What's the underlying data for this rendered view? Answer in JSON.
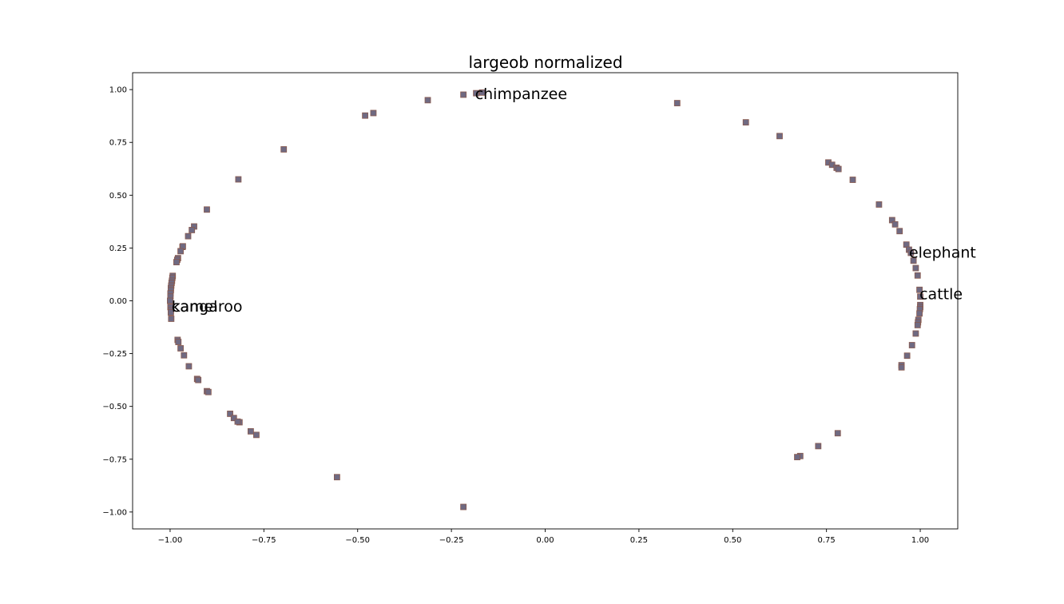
{
  "chart_data": {
    "type": "scatter",
    "title": "largeob normalized",
    "xlabel": "",
    "ylabel": "",
    "xlim": [
      -1.1,
      1.1
    ],
    "ylim": [
      -1.08,
      1.08
    ],
    "x_ticks": [
      -1.0,
      -0.75,
      -0.5,
      -0.25,
      0.0,
      0.25,
      0.5,
      0.75,
      1.0
    ],
    "x_tick_labels": [
      "−1.00",
      "−0.75",
      "−0.50",
      "−0.25",
      "0.00",
      "0.25",
      "0.50",
      "0.75",
      "1.00"
    ],
    "y_ticks": [
      1.0,
      0.75,
      0.5,
      0.25,
      0.0,
      -0.25,
      -0.5,
      -0.75,
      -1.0
    ],
    "y_tick_labels": [
      "1.00",
      "0.75",
      "0.50",
      "0.25",
      "0.00",
      "−0.25",
      "−0.50",
      "−0.75",
      "−1.00"
    ],
    "grid": false,
    "marker": "square",
    "marker_color": "#6f6a82",
    "marker_edge_color": "#8a5a4e",
    "points": [
      {
        "x": -0.218,
        "y": 0.976
      },
      {
        "x": -0.313,
        "y": 0.95
      },
      {
        "x": -0.168,
        "y": 0.986
      },
      {
        "x": -0.184,
        "y": 0.983
      },
      {
        "x": -0.48,
        "y": 0.877
      },
      {
        "x": -0.458,
        "y": 0.889
      },
      {
        "x": -0.697,
        "y": 0.717
      },
      {
        "x": -0.818,
        "y": 0.575
      },
      {
        "x": -0.902,
        "y": 0.432
      },
      {
        "x": -0.936,
        "y": 0.352
      },
      {
        "x": -0.942,
        "y": 0.335
      },
      {
        "x": -0.952,
        "y": 0.306
      },
      {
        "x": -0.967,
        "y": 0.255
      },
      {
        "x": -0.966,
        "y": 0.258
      },
      {
        "x": -0.972,
        "y": 0.235
      },
      {
        "x": -0.979,
        "y": 0.202
      },
      {
        "x": -0.981,
        "y": 0.194
      },
      {
        "x": -0.983,
        "y": 0.183
      },
      {
        "x": -0.993,
        "y": 0.118
      },
      {
        "x": -0.994,
        "y": 0.109
      },
      {
        "x": -0.995,
        "y": 0.095
      },
      {
        "x": -0.996,
        "y": 0.085
      },
      {
        "x": -0.997,
        "y": 0.072
      },
      {
        "x": -0.998,
        "y": 0.06
      },
      {
        "x": -0.998,
        "y": 0.05
      },
      {
        "x": -0.999,
        "y": 0.035
      },
      {
        "x": -0.999,
        "y": 0.02
      },
      {
        "x": -1.0,
        "y": 0.0
      },
      {
        "x": -0.999,
        "y": -0.03
      },
      {
        "x": -0.998,
        "y": -0.045
      },
      {
        "x": -0.998,
        "y": -0.055
      },
      {
        "x": -0.997,
        "y": -0.085
      },
      {
        "x": -0.98,
        "y": -0.185
      },
      {
        "x": -0.978,
        "y": -0.195
      },
      {
        "x": -0.972,
        "y": -0.225
      },
      {
        "x": -0.963,
        "y": -0.258
      },
      {
        "x": -0.95,
        "y": -0.31
      },
      {
        "x": -0.928,
        "y": -0.37
      },
      {
        "x": -0.925,
        "y": -0.375
      },
      {
        "x": -0.902,
        "y": -0.428
      },
      {
        "x": -0.898,
        "y": -0.432
      },
      {
        "x": -0.84,
        "y": -0.535
      },
      {
        "x": -0.83,
        "y": -0.555
      },
      {
        "x": -0.815,
        "y": -0.575
      },
      {
        "x": -0.82,
        "y": -0.572
      },
      {
        "x": -0.785,
        "y": -0.618
      },
      {
        "x": -0.77,
        "y": -0.635
      },
      {
        "x": -0.555,
        "y": -0.835
      },
      {
        "x": -0.218,
        "y": -0.976
      },
      {
        "x": 0.352,
        "y": 0.936
      },
      {
        "x": 0.535,
        "y": 0.845
      },
      {
        "x": 0.625,
        "y": 0.78
      },
      {
        "x": 0.755,
        "y": 0.655
      },
      {
        "x": 0.765,
        "y": 0.644
      },
      {
        "x": 0.777,
        "y": 0.63
      },
      {
        "x": 0.782,
        "y": 0.624
      },
      {
        "x": 0.82,
        "y": 0.573
      },
      {
        "x": 0.89,
        "y": 0.456
      },
      {
        "x": 0.925,
        "y": 0.382
      },
      {
        "x": 0.933,
        "y": 0.362
      },
      {
        "x": 0.945,
        "y": 0.33
      },
      {
        "x": 0.963,
        "y": 0.266
      },
      {
        "x": 0.97,
        "y": 0.242
      },
      {
        "x": 0.975,
        "y": 0.227
      },
      {
        "x": 0.982,
        "y": 0.19
      },
      {
        "x": 0.988,
        "y": 0.155
      },
      {
        "x": 0.993,
        "y": 0.12
      },
      {
        "x": 0.998,
        "y": 0.052
      },
      {
        "x": 1.0,
        "y": 0.02
      },
      {
        "x": 1.0,
        "y": -0.02
      },
      {
        "x": 1.0,
        "y": -0.03
      },
      {
        "x": 0.999,
        "y": -0.04
      },
      {
        "x": 0.998,
        "y": -0.06
      },
      {
        "x": 0.995,
        "y": -0.09
      },
      {
        "x": 0.994,
        "y": -0.102
      },
      {
        "x": 0.993,
        "y": -0.115
      },
      {
        "x": 0.988,
        "y": -0.155
      },
      {
        "x": 0.978,
        "y": -0.21
      },
      {
        "x": 0.965,
        "y": -0.26
      },
      {
        "x": 0.95,
        "y": -0.305
      },
      {
        "x": 0.95,
        "y": -0.315
      },
      {
        "x": 0.78,
        "y": -0.627
      },
      {
        "x": 0.728,
        "y": -0.688
      },
      {
        "x": 0.68,
        "y": -0.735
      },
      {
        "x": 0.672,
        "y": -0.74
      }
    ],
    "annotations": [
      {
        "text": "chimpanzee",
        "x": -0.187,
        "y": 0.982
      },
      {
        "text": "elephant",
        "x": 0.97,
        "y": 0.23
      },
      {
        "text": "cattle",
        "x": 0.998,
        "y": 0.035
      },
      {
        "text": "kangaroo",
        "x": -0.996,
        "y": -0.025
      },
      {
        "text": "camel",
        "x": -0.996,
        "y": -0.025
      }
    ]
  }
}
